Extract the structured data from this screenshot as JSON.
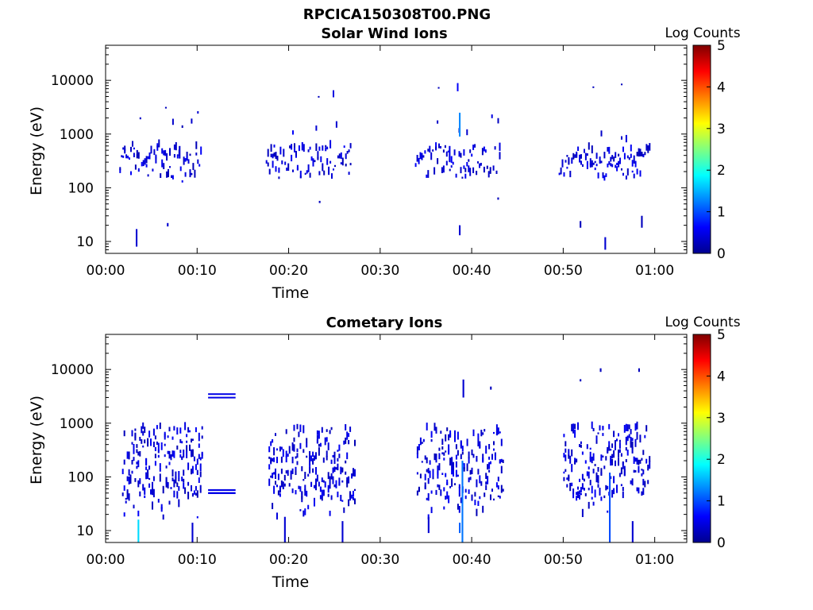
{
  "figure_title": "RPCICA150308T00.PNG",
  "chart_data": [
    {
      "type": "heatmap",
      "title": "Solar Wind Ions",
      "xlabel": "Time",
      "ylabel": "Energy (eV)",
      "y_scale": "log",
      "xlim_min": [
        0,
        63.5
      ],
      "ylim": [
        6,
        45000
      ],
      "xticks": [
        "00:00",
        "00:10",
        "00:20",
        "00:30",
        "00:40",
        "00:50",
        "01:00"
      ],
      "xtick_values_min": [
        0,
        10,
        20,
        30,
        40,
        50,
        60
      ],
      "yticks": [
        "10",
        "100",
        "1000",
        "10000"
      ],
      "ytick_values": [
        10,
        100,
        1000,
        10000
      ],
      "colorbar": {
        "label": "Log Counts",
        "range": [
          0,
          5
        ],
        "ticks": [
          "0",
          "1",
          "2",
          "3",
          "4",
          "5"
        ],
        "colormap": "jet"
      },
      "grid": false,
      "bursts_min": [
        [
          1.5,
          10.5
        ],
        [
          17.5,
          26.8
        ],
        [
          33.8,
          43
        ],
        [
          49.5,
          59.5
        ]
      ],
      "cells": [
        {
          "t": 3.3,
          "e": [
            8,
            17
          ],
          "c": 0.4
        },
        {
          "t": 6.7,
          "e": [
            19,
            22
          ],
          "c": 0.4
        },
        {
          "t": 8.0,
          "e": [
            350,
            600
          ],
          "c": 0.4
        },
        {
          "t": 38.6,
          "e": [
            900,
            2500
          ],
          "c": 1.3
        },
        {
          "t": 38.6,
          "e": [
            13,
            20
          ],
          "c": 0.4
        },
        {
          "t": 37.5,
          "e": [
            300,
            600
          ],
          "c": 0.5
        },
        {
          "t": 54.5,
          "e": [
            7,
            12
          ],
          "c": 0.4
        },
        {
          "t": 51.8,
          "e": [
            18,
            24
          ],
          "c": 0.3
        },
        {
          "t": 58.5,
          "e": [
            18,
            30
          ],
          "c": 0.3
        },
        {
          "t": 23.3,
          "e": [
            52,
            57
          ],
          "c": 0.3
        },
        {
          "t": 6.5,
          "e": [
            3000,
            3200
          ],
          "c": 0.3
        },
        {
          "t": 23.2,
          "e": [
            4800,
            5100
          ],
          "c": 0.3
        },
        {
          "t": 36.3,
          "e": [
            7200,
            7500
          ],
          "c": 0.3
        },
        {
          "t": 53.2,
          "e": [
            7300,
            7700
          ],
          "c": 0.3
        },
        {
          "t": 56.3,
          "e": [
            8200,
            8700
          ],
          "c": 0.3
        },
        {
          "t": 42.8,
          "e": [
            60,
            66
          ],
          "c": 0.3
        }
      ]
    },
    {
      "type": "heatmap",
      "title": "Cometary Ions",
      "xlabel": "Time",
      "ylabel": "Energy (eV)",
      "y_scale": "log",
      "xlim_min": [
        0,
        63.5
      ],
      "ylim": [
        6,
        45000
      ],
      "xticks": [
        "00:00",
        "00:10",
        "00:20",
        "00:30",
        "00:40",
        "00:50",
        "01:00"
      ],
      "xtick_values_min": [
        0,
        10,
        20,
        30,
        40,
        50,
        60
      ],
      "yticks": [
        "10",
        "100",
        "1000",
        "10000"
      ],
      "ytick_values": [
        10,
        100,
        1000,
        10000
      ],
      "colorbar": {
        "label": "Log Counts",
        "range": [
          0,
          5
        ],
        "ticks": [
          "0",
          "1",
          "2",
          "3",
          "4",
          "5"
        ],
        "colormap": "jet"
      },
      "grid": false,
      "bursts_min": [
        [
          1.8,
          10.5
        ],
        [
          17.8,
          27.2
        ],
        [
          34,
          43.5
        ],
        [
          50,
          59.5
        ]
      ],
      "cells": [
        {
          "t": 11.2,
          "e": [
            2900,
            3100
          ],
          "c": 0.5
        },
        {
          "t": 11.2,
          "e": [
            3400,
            3600
          ],
          "c": 0.5
        },
        {
          "t": 11.2,
          "e": [
            48,
            52
          ],
          "c": 0.5
        },
        {
          "t": 11.2,
          "e": [
            55,
            59
          ],
          "c": 0.5
        },
        {
          "t": 3.5,
          "e": [
            6,
            16
          ],
          "c": 1.7
        },
        {
          "t": 38.9,
          "e": [
            6,
            200
          ],
          "c": 1.2
        },
        {
          "t": 38.6,
          "e": [
            9,
            14
          ],
          "c": 1.1
        },
        {
          "t": 55.0,
          "e": [
            6,
            120
          ],
          "c": 1.0
        },
        {
          "t": 35.2,
          "e": [
            9,
            18
          ],
          "c": 0.4
        },
        {
          "t": 39.0,
          "e": [
            3000,
            6500
          ],
          "c": 0.4
        },
        {
          "t": 42.0,
          "e": [
            4200,
            4800
          ],
          "c": 0.3
        },
        {
          "t": 57.5,
          "e": [
            6,
            15
          ],
          "c": 0.4
        },
        {
          "t": 19.5,
          "e": [
            6,
            18
          ],
          "c": 0.4
        },
        {
          "t": 25.8,
          "e": [
            6,
            15
          ],
          "c": 0.4
        },
        {
          "t": 9.4,
          "e": [
            6,
            14
          ],
          "c": 0.4
        },
        {
          "t": 54.0,
          "e": [
            9000,
            10500
          ],
          "c": 0.3
        },
        {
          "t": 58.2,
          "e": [
            9000,
            10500
          ],
          "c": 0.3
        },
        {
          "t": 51.8,
          "e": [
            6000,
            6600
          ],
          "c": 0.3
        }
      ]
    }
  ]
}
